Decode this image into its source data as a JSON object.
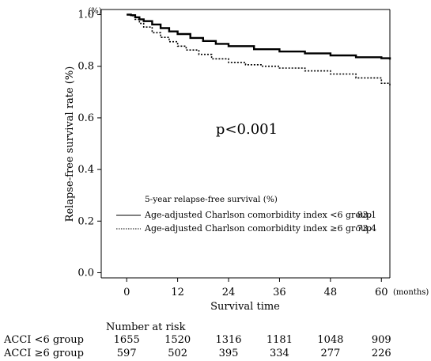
{
  "chart_data": {
    "type": "line",
    "title": "",
    "xlabel": "Survival time",
    "x_unit": "(months)",
    "ylabel": "Relapse-free survival rate (%)",
    "y_unit": "(%)",
    "xlim": [
      -6,
      62
    ],
    "ylim": [
      -0.02,
      1.02
    ],
    "x_ticks": [
      "0",
      "12",
      "24",
      "36",
      "48",
      "60"
    ],
    "y_ticks": [
      "0.0",
      "0.2",
      "0.4",
      "0.6",
      "0.8",
      "1.0"
    ],
    "annotation": "p<0.001",
    "legend": {
      "title": "5-year relapse-free survival (%)",
      "position": "lower-center",
      "entries": [
        {
          "label": "Age-adjusted Charlson comorbidity index <6 group",
          "value": "83.1",
          "style": "solid"
        },
        {
          "label": "Age-adjusted Charlson comorbidity index ≥6 group",
          "value": "73.4",
          "style": "dotted"
        }
      ]
    },
    "series": [
      {
        "name": "Age-adjusted Charlson comorbidity index <6 group",
        "style": "solid",
        "x": [
          0,
          1,
          2,
          3,
          4,
          6,
          8,
          10,
          12,
          15,
          18,
          21,
          24,
          30,
          36,
          42,
          48,
          54,
          60,
          62
        ],
        "y": [
          1.0,
          0.998,
          0.99,
          0.982,
          0.975,
          0.962,
          0.948,
          0.935,
          0.925,
          0.91,
          0.898,
          0.887,
          0.878,
          0.866,
          0.857,
          0.85,
          0.842,
          0.835,
          0.831,
          0.826
        ]
      },
      {
        "name": "Age-adjusted Charlson comorbidity index ≥6 group",
        "style": "dotted",
        "x": [
          0,
          1,
          2,
          3,
          4,
          6,
          8,
          10,
          12,
          14,
          17,
          20,
          24,
          28,
          32,
          36,
          42,
          48,
          54,
          60,
          62
        ],
        "y": [
          1.0,
          0.996,
          0.982,
          0.966,
          0.952,
          0.93,
          0.912,
          0.895,
          0.878,
          0.863,
          0.846,
          0.829,
          0.815,
          0.806,
          0.8,
          0.793,
          0.782,
          0.77,
          0.755,
          0.734,
          0.72
        ]
      }
    ],
    "risk_table": {
      "header": "Number at risk",
      "rows": [
        {
          "label": "ACCI <6 group",
          "values": [
            "1655",
            "1520",
            "1316",
            "1181",
            "1048",
            "909"
          ]
        },
        {
          "label": "ACCI ≥6 group",
          "values": [
            "597",
            "502",
            "395",
            "334",
            "277",
            "226"
          ]
        }
      ]
    }
  }
}
